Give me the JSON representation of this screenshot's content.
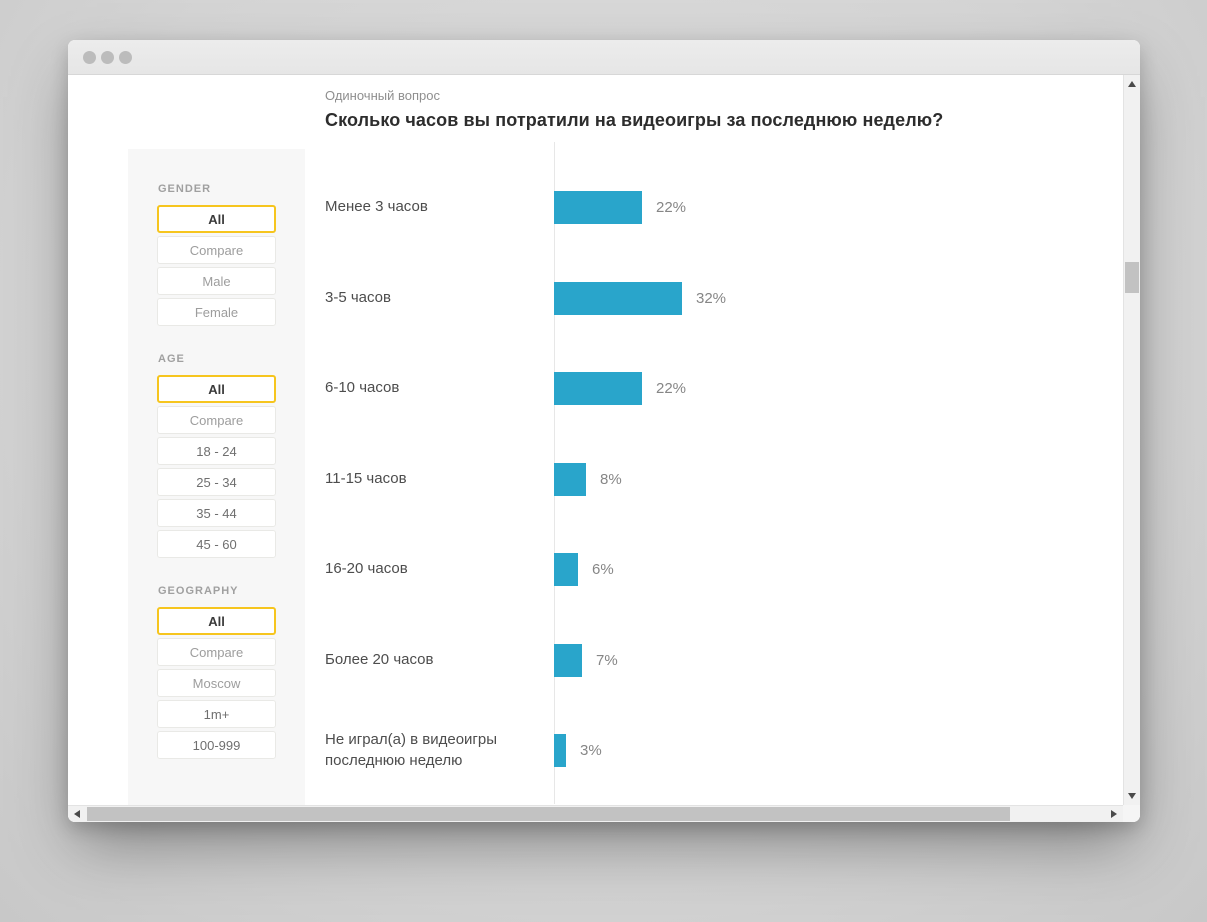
{
  "header": {
    "question_type": "Одиночный вопрос",
    "title": "Сколько часов вы потратили на видеоигры за последнюю неделю?"
  },
  "filters": {
    "sections": [
      {
        "title": "GENDER",
        "options": [
          {
            "label": "All",
            "selected": true
          },
          {
            "label": "Compare",
            "selected": false
          },
          {
            "label": "Male",
            "selected": false
          },
          {
            "label": "Female",
            "selected": false
          }
        ]
      },
      {
        "title": "AGE",
        "options": [
          {
            "label": "All",
            "selected": true
          },
          {
            "label": "Compare",
            "selected": false
          },
          {
            "label": "18 - 24",
            "selected": false,
            "emphasis": true
          },
          {
            "label": "25 - 34",
            "selected": false,
            "emphasis": true
          },
          {
            "label": "35 - 44",
            "selected": false,
            "emphasis": true
          },
          {
            "label": "45 - 60",
            "selected": false,
            "emphasis": true
          }
        ]
      },
      {
        "title": "GEOGRAPHY",
        "options": [
          {
            "label": "All",
            "selected": true
          },
          {
            "label": "Compare",
            "selected": false
          },
          {
            "label": "Moscow",
            "selected": false
          },
          {
            "label": "1m+",
            "selected": false,
            "emphasis": true
          },
          {
            "label": "100-999",
            "selected": false,
            "emphasis": true
          }
        ]
      }
    ]
  },
  "chart_data": {
    "type": "bar",
    "orientation": "horizontal",
    "title": "Сколько часов вы потратили на видеоигры за последнюю неделю?",
    "subtitle": "Одиночный вопрос",
    "categories": [
      "Менее 3 часов",
      "3-5 часов",
      "6-10 часов",
      "11-15 часов",
      "16-20 часов",
      "Более 20 часов",
      "Не играл(а) в видеоигры последнюю неделю"
    ],
    "values": [
      22,
      32,
      22,
      8,
      6,
      7,
      3
    ],
    "value_labels": [
      "22%",
      "32%",
      "22%",
      "8%",
      "6%",
      "7%",
      "3%"
    ],
    "unit": "%",
    "bar_color": "#29A5CB",
    "gridlines": false,
    "legend": null
  },
  "colors": {
    "accent_yellow": "#F6C51E",
    "bar_blue": "#29A5CB",
    "sidebar_bg": "#f7f7f7"
  },
  "icons": {
    "scroll_up": "▲",
    "scroll_down": "▼",
    "scroll_left": "◄",
    "scroll_right": "►",
    "traffic_light": "●"
  }
}
